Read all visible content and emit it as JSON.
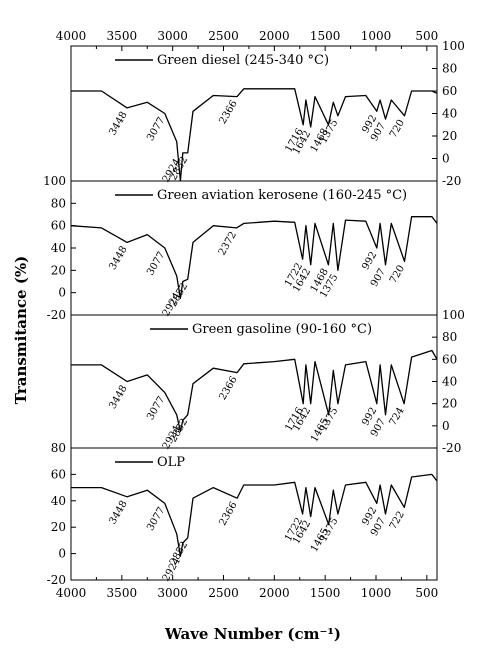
{
  "chart_data": {
    "type": "line",
    "x_axis": {
      "label": "Wave Number (cm⁻¹)",
      "range": [
        4000,
        400
      ],
      "reversed": true,
      "ticks": [
        4000,
        3500,
        3000,
        2500,
        2000,
        1500,
        1000,
        500
      ],
      "tick_labels": [
        "4000",
        "3500",
        "3000",
        "2500",
        "2000",
        "1500",
        "1000",
        "500"
      ]
    },
    "y_axis_label": "Transmitance (%)",
    "panels": [
      {
        "name": "Green diesel (245-340 °C)",
        "y_axis_side": "right",
        "ylim": [
          -20,
          100
        ],
        "y_ticks": [
          -20,
          0,
          20,
          40,
          60,
          80,
          100
        ],
        "series": [
          [
            4000,
            60
          ],
          [
            3700,
            60
          ],
          [
            3448,
            45
          ],
          [
            3250,
            50
          ],
          [
            3077,
            40
          ],
          [
            2960,
            15
          ],
          [
            2924,
            -20
          ],
          [
            2900,
            5
          ],
          [
            2852,
            5
          ],
          [
            2800,
            42
          ],
          [
            2600,
            56
          ],
          [
            2366,
            55
          ],
          [
            2300,
            62
          ],
          [
            2000,
            62
          ],
          [
            1800,
            62
          ],
          [
            1716,
            30
          ],
          [
            1690,
            52
          ],
          [
            1642,
            28
          ],
          [
            1600,
            55
          ],
          [
            1468,
            30
          ],
          [
            1420,
            50
          ],
          [
            1375,
            38
          ],
          [
            1300,
            55
          ],
          [
            1100,
            56
          ],
          [
            992,
            42
          ],
          [
            960,
            52
          ],
          [
            907,
            35
          ],
          [
            850,
            52
          ],
          [
            720,
            38
          ],
          [
            650,
            60
          ],
          [
            450,
            60
          ],
          [
            400,
            58
          ]
        ],
        "peaks": [
          {
            "label": "3448",
            "x": 3448
          },
          {
            "label": "3077",
            "x": 3077
          },
          {
            "label": "2924",
            "x": 2924
          },
          {
            "label": "2852",
            "x": 2852
          },
          {
            "label": "2366",
            "x": 2366
          },
          {
            "label": "1716",
            "x": 1716
          },
          {
            "label": "1642",
            "x": 1642
          },
          {
            "label": "1468",
            "x": 1468
          },
          {
            "label": "1375",
            "x": 1375
          },
          {
            "label": "992",
            "x": 992
          },
          {
            "label": "907",
            "x": 907
          },
          {
            "label": "720",
            "x": 720
          }
        ]
      },
      {
        "name": "Green aviation kerosene (160-245 °C)",
        "y_axis_side": "left",
        "ylim": [
          -20,
          100
        ],
        "y_ticks": [
          -20,
          0,
          20,
          40,
          60,
          80,
          100
        ],
        "series": [
          [
            4000,
            60
          ],
          [
            3700,
            58
          ],
          [
            3448,
            45
          ],
          [
            3250,
            52
          ],
          [
            3077,
            40
          ],
          [
            2960,
            15
          ],
          [
            2924,
            -5
          ],
          [
            2900,
            10
          ],
          [
            2852,
            12
          ],
          [
            2800,
            45
          ],
          [
            2600,
            60
          ],
          [
            2372,
            58
          ],
          [
            2300,
            62
          ],
          [
            2000,
            64
          ],
          [
            1800,
            63
          ],
          [
            1722,
            30
          ],
          [
            1690,
            60
          ],
          [
            1642,
            25
          ],
          [
            1600,
            62
          ],
          [
            1468,
            25
          ],
          [
            1420,
            62
          ],
          [
            1375,
            20
          ],
          [
            1300,
            65
          ],
          [
            1100,
            64
          ],
          [
            992,
            40
          ],
          [
            960,
            62
          ],
          [
            907,
            25
          ],
          [
            850,
            62
          ],
          [
            720,
            28
          ],
          [
            650,
            68
          ],
          [
            450,
            68
          ],
          [
            400,
            62
          ]
        ],
        "peaks": [
          {
            "label": "3448",
            "x": 3448
          },
          {
            "label": "3077",
            "x": 3077
          },
          {
            "label": "2924",
            "x": 2924
          },
          {
            "label": "2852",
            "x": 2852
          },
          {
            "label": "2372",
            "x": 2372
          },
          {
            "label": "1722",
            "x": 1722
          },
          {
            "label": "1642",
            "x": 1642
          },
          {
            "label": "1468",
            "x": 1468
          },
          {
            "label": "1375",
            "x": 1375
          },
          {
            "label": "992",
            "x": 992
          },
          {
            "label": "907",
            "x": 907
          },
          {
            "label": "720",
            "x": 720
          }
        ]
      },
      {
        "name": "Green gasoline (90-160 °C)",
        "y_axis_side": "right",
        "ylim": [
          -20,
          100
        ],
        "y_ticks": [
          -20,
          0,
          20,
          40,
          60,
          80,
          100
        ],
        "series": [
          [
            4000,
            55
          ],
          [
            3700,
            55
          ],
          [
            3448,
            40
          ],
          [
            3250,
            46
          ],
          [
            3077,
            30
          ],
          [
            2960,
            10
          ],
          [
            2924,
            -5
          ],
          [
            2900,
            5
          ],
          [
            2852,
            10
          ],
          [
            2800,
            38
          ],
          [
            2600,
            52
          ],
          [
            2366,
            48
          ],
          [
            2300,
            56
          ],
          [
            2000,
            58
          ],
          [
            1800,
            60
          ],
          [
            1716,
            20
          ],
          [
            1690,
            55
          ],
          [
            1642,
            20
          ],
          [
            1600,
            58
          ],
          [
            1465,
            10
          ],
          [
            1420,
            50
          ],
          [
            1375,
            20
          ],
          [
            1300,
            55
          ],
          [
            1100,
            58
          ],
          [
            992,
            20
          ],
          [
            960,
            55
          ],
          [
            907,
            10
          ],
          [
            850,
            55
          ],
          [
            724,
            20
          ],
          [
            650,
            62
          ],
          [
            450,
            68
          ],
          [
            400,
            60
          ]
        ],
        "peaks": [
          {
            "label": "3448",
            "x": 3448
          },
          {
            "label": "3077",
            "x": 3077
          },
          {
            "label": "2924",
            "x": 2924
          },
          {
            "label": "2852",
            "x": 2852
          },
          {
            "label": "2366",
            "x": 2366
          },
          {
            "label": "1716",
            "x": 1716
          },
          {
            "label": "1642",
            "x": 1642
          },
          {
            "label": "1465",
            "x": 1465
          },
          {
            "label": "1375",
            "x": 1375
          },
          {
            "label": "992",
            "x": 992
          },
          {
            "label": "907",
            "x": 907
          },
          {
            "label": "724",
            "x": 724
          }
        ]
      },
      {
        "name": "OLP",
        "y_axis_side": "left",
        "ylim": [
          -20,
          80
        ],
        "y_ticks": [
          -20,
          0,
          20,
          40,
          60,
          80
        ],
        "series": [
          [
            4000,
            50
          ],
          [
            3700,
            50
          ],
          [
            3448,
            43
          ],
          [
            3250,
            48
          ],
          [
            3077,
            38
          ],
          [
            2960,
            15
          ],
          [
            2924,
            -2
          ],
          [
            2900,
            8
          ],
          [
            2852,
            12
          ],
          [
            2800,
            42
          ],
          [
            2600,
            50
          ],
          [
            2366,
            42
          ],
          [
            2300,
            52
          ],
          [
            2000,
            52
          ],
          [
            1800,
            54
          ],
          [
            1722,
            30
          ],
          [
            1690,
            50
          ],
          [
            1642,
            28
          ],
          [
            1600,
            50
          ],
          [
            1465,
            22
          ],
          [
            1420,
            48
          ],
          [
            1375,
            30
          ],
          [
            1300,
            52
          ],
          [
            1100,
            54
          ],
          [
            992,
            38
          ],
          [
            960,
            52
          ],
          [
            907,
            30
          ],
          [
            850,
            52
          ],
          [
            722,
            35
          ],
          [
            650,
            58
          ],
          [
            450,
            60
          ],
          [
            400,
            55
          ]
        ],
        "peaks": [
          {
            "label": "3448",
            "x": 3448
          },
          {
            "label": "3077",
            "x": 3077
          },
          {
            "label": "2924",
            "x": 2924
          },
          {
            "label": "2852",
            "x": 2852
          },
          {
            "label": "2366",
            "x": 2366
          },
          {
            "label": "1722",
            "x": 1722
          },
          {
            "label": "1642",
            "x": 1642
          },
          {
            "label": "1465",
            "x": 1465
          },
          {
            "label": "1375",
            "x": 1375
          },
          {
            "label": "992",
            "x": 992
          },
          {
            "label": "907",
            "x": 907
          },
          {
            "label": "722",
            "x": 722
          }
        ]
      }
    ]
  }
}
